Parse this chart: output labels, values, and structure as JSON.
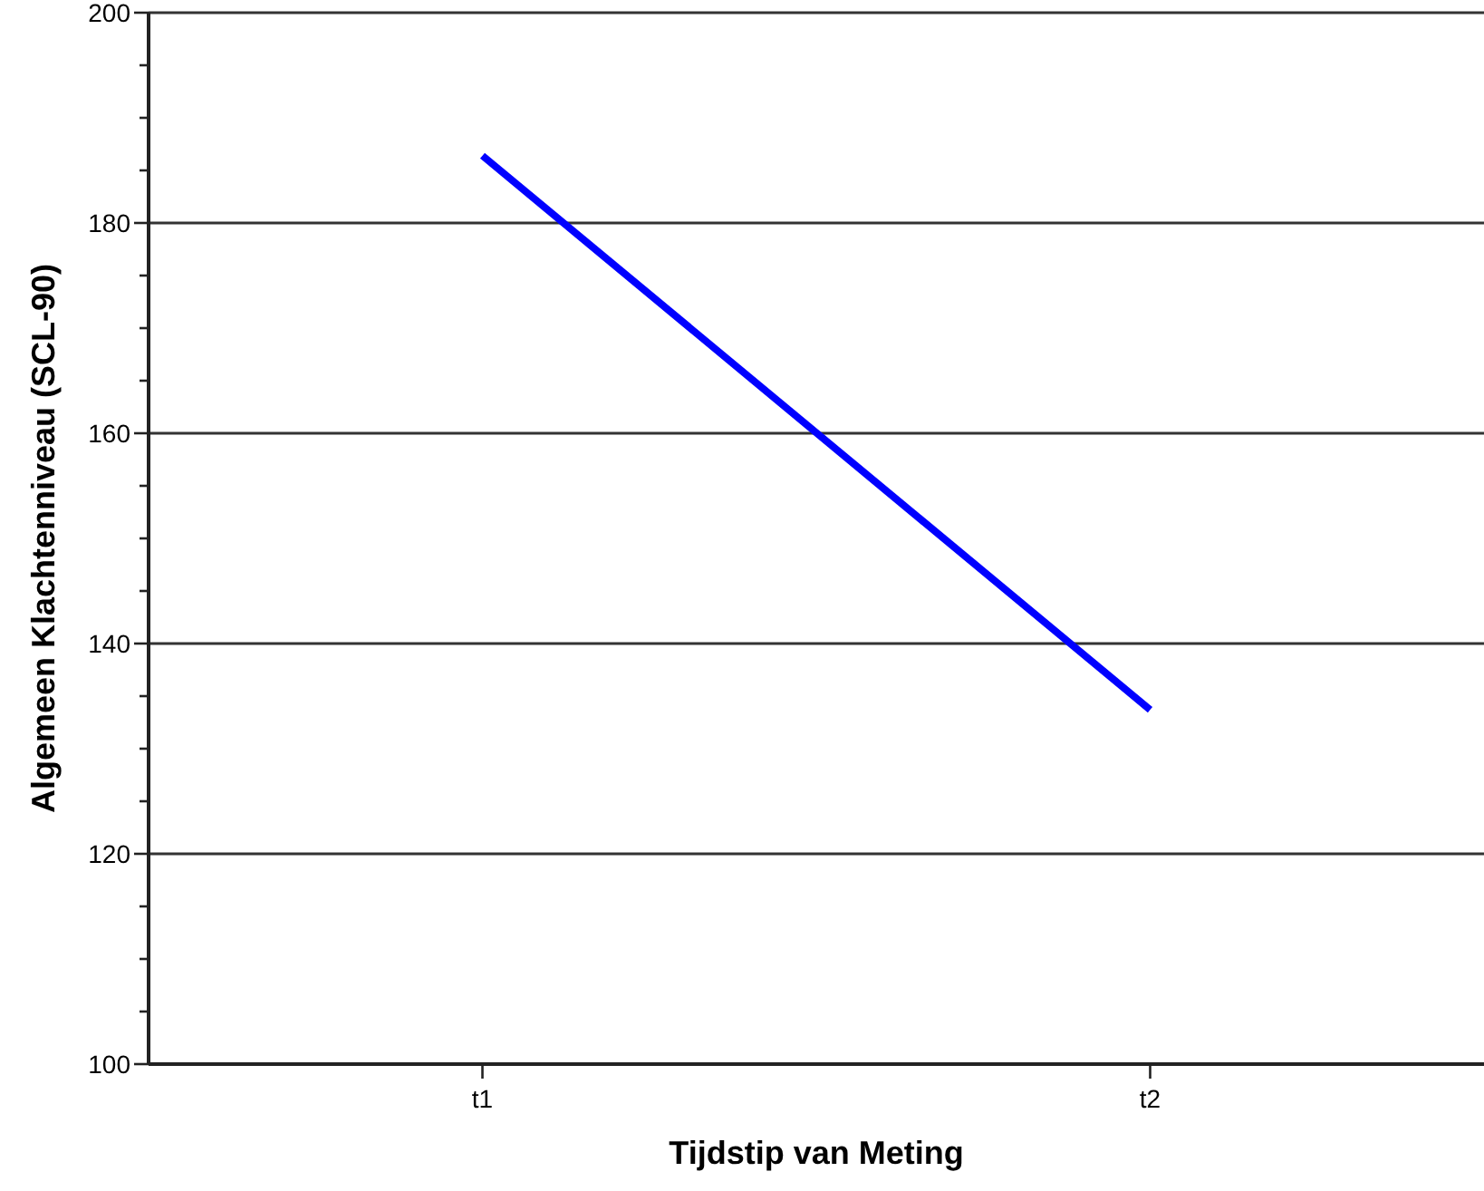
{
  "chart_data": {
    "type": "line",
    "xlabel": "Tijdstip van Meting",
    "ylabel": "Algemeen Klachtenniveau (SCL-90)",
    "categories": [
      "t1",
      "t2"
    ],
    "series": [
      {
        "color": "#0000ff",
        "values": [
          186.4,
          133.7
        ]
      }
    ],
    "ylim": [
      100,
      200
    ],
    "yticks": [
      100,
      {
        "value": 105,
        "label": null
      },
      {
        "value": 110,
        "label": null
      },
      {
        "value": 115,
        "label": null
      },
      120,
      {
        "value": 125,
        "label": null
      },
      {
        "value": 130,
        "label": null
      },
      {
        "value": 135,
        "label": null
      },
      140,
      {
        "value": 145,
        "label": null
      },
      {
        "value": 150,
        "label": null
      },
      {
        "value": 155,
        "label": null
      },
      160,
      {
        "value": 165,
        "label": null
      },
      {
        "value": 170,
        "label": null
      },
      {
        "value": 175,
        "label": null
      },
      180,
      {
        "value": 185,
        "label": null
      },
      {
        "value": 190,
        "label": null
      },
      {
        "value": 195,
        "label": null
      },
      200
    ],
    "grid": "y",
    "marker": "none",
    "line_style": "solid"
  }
}
